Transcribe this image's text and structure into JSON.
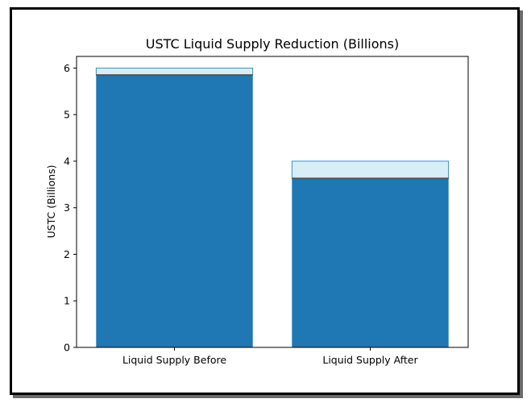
{
  "chart_data": {
    "type": "bar",
    "title": "USTC Liquid Supply Reduction (Billions)",
    "xlabel": "",
    "ylabel": "USTC (Billions)",
    "categories": [
      "Liquid Supply Before",
      "Liquid Supply After"
    ],
    "values": [
      5.85,
      3.63
    ],
    "cap_series": [
      {
        "values": [
          6.0,
          4.0
        ],
        "from": [
          5.85,
          3.63
        ]
      }
    ],
    "ylim": [
      0,
      6.25
    ],
    "yticks": [
      0,
      1,
      2,
      3,
      4,
      5,
      6
    ],
    "grid": false,
    "colors": {
      "bar": "#1f77b4",
      "cap_fill": "#d8eef6",
      "cap_edge": "#1f77b4",
      "separator": "#555555"
    }
  }
}
